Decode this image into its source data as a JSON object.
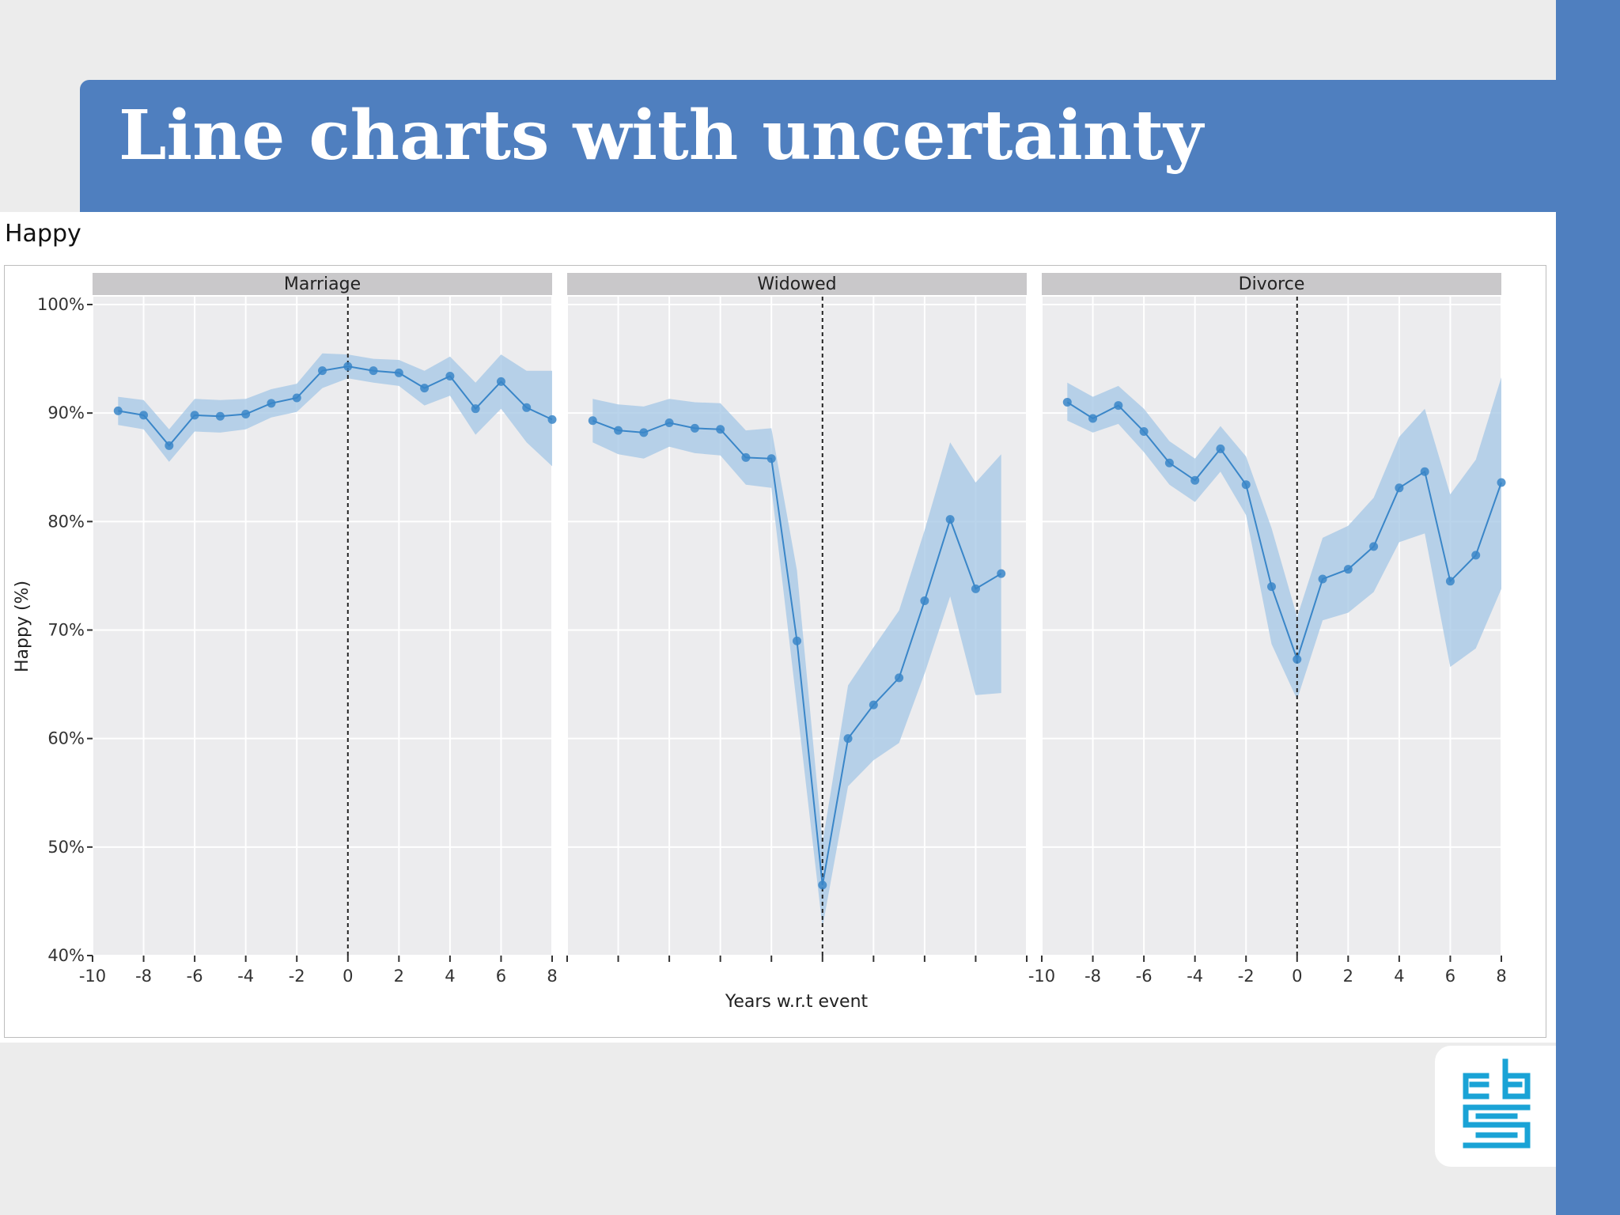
{
  "slide": {
    "title": "Line charts with uncertainty"
  },
  "colors": {
    "banner": "#4f7fbf",
    "line": "#3a86c8",
    "ribbon": "#a9c9e6",
    "panel_bg": "#ececee",
    "strip_bg": "#c9c8ca",
    "logo": "#1aa3d6"
  },
  "logo": {
    "icon": "cbs-logo-icon"
  },
  "chart_data": {
    "type": "line",
    "title": "Happy",
    "xlabel": "Years w.r.t event",
    "ylabel": "Happy (%)",
    "ylim": [
      40,
      100
    ],
    "yticks": [
      40,
      50,
      60,
      70,
      80,
      90,
      100
    ],
    "ytick_labels": [
      "40%",
      "50%",
      "60%",
      "70%",
      "80%",
      "90%",
      "100%"
    ],
    "xlim": [
      -10,
      8
    ],
    "xticks": [
      -10,
      -8,
      -6,
      -4,
      -2,
      0,
      2,
      4,
      6,
      8
    ],
    "xtick_labels": [
      "-10",
      "-8",
      "-6",
      "-4",
      "-2",
      "0",
      "2",
      "4",
      "6",
      "8"
    ],
    "event_line_x": 0,
    "grid": true,
    "panels": [
      {
        "name": "Marriage",
        "show_xtick_labels": true,
        "x": [
          -9,
          -8,
          -7,
          -6,
          -5,
          -4,
          -3,
          -2,
          -1,
          0,
          1,
          2,
          3,
          4,
          5,
          6,
          7,
          8
        ],
        "y": [
          90.2,
          89.8,
          87.0,
          89.8,
          89.7,
          89.9,
          90.9,
          91.4,
          93.9,
          94.3,
          93.9,
          93.7,
          92.3,
          93.4,
          90.4,
          92.9,
          90.5,
          89.4
        ],
        "lower": [
          88.9,
          88.5,
          85.5,
          88.3,
          88.2,
          88.5,
          89.6,
          90.1,
          92.3,
          93.2,
          92.8,
          92.5,
          90.7,
          91.6,
          88.0,
          90.4,
          87.3,
          85.1
        ],
        "upper": [
          91.5,
          91.2,
          88.5,
          91.3,
          91.2,
          91.3,
          92.2,
          92.7,
          95.5,
          95.4,
          95.0,
          94.9,
          93.9,
          95.2,
          92.8,
          95.4,
          93.9,
          93.9
        ]
      },
      {
        "name": "Widowed",
        "show_xtick_labels": false,
        "x": [
          -9,
          -8,
          -7,
          -6,
          -5,
          -4,
          -3,
          -2,
          -1,
          0,
          1,
          2,
          3,
          4,
          5,
          6,
          7
        ],
        "y": [
          89.3,
          88.4,
          88.2,
          89.1,
          88.6,
          88.5,
          85.9,
          85.8,
          69.0,
          46.5,
          60.0,
          63.1,
          65.6,
          72.7,
          80.2,
          73.8,
          75.2
        ],
        "lower": [
          87.3,
          86.2,
          85.8,
          86.9,
          86.3,
          86.1,
          83.4,
          83.1,
          63.0,
          42.6,
          55.6,
          58.0,
          59.6,
          66.0,
          73.1,
          64.0,
          64.2
        ],
        "upper": [
          91.3,
          90.8,
          90.6,
          91.3,
          91.0,
          90.9,
          88.4,
          88.6,
          75.5,
          50.4,
          64.9,
          68.4,
          71.8,
          79.2,
          87.3,
          83.6,
          86.2
        ]
      },
      {
        "name": "Divorce",
        "show_xtick_labels": true,
        "x": [
          -9,
          -8,
          -7,
          -6,
          -5,
          -4,
          -3,
          -2,
          -1,
          0,
          1,
          2,
          3,
          4,
          5,
          6,
          7,
          8
        ],
        "y": [
          91.0,
          89.5,
          90.7,
          88.3,
          85.4,
          83.8,
          86.7,
          83.4,
          74.0,
          67.3,
          74.7,
          75.6,
          77.7,
          83.1,
          84.6,
          74.5,
          76.9,
          83.6
        ],
        "lower": [
          89.3,
          88.2,
          89.0,
          86.4,
          83.4,
          81.8,
          84.6,
          80.6,
          68.7,
          63.6,
          70.9,
          71.6,
          73.5,
          78.1,
          78.9,
          66.6,
          68.3,
          73.8
        ],
        "upper": [
          92.8,
          91.5,
          92.5,
          90.4,
          87.4,
          85.8,
          88.8,
          86.0,
          79.4,
          71.2,
          78.5,
          79.6,
          82.2,
          87.8,
          90.4,
          82.5,
          85.7,
          93.3
        ]
      }
    ]
  }
}
